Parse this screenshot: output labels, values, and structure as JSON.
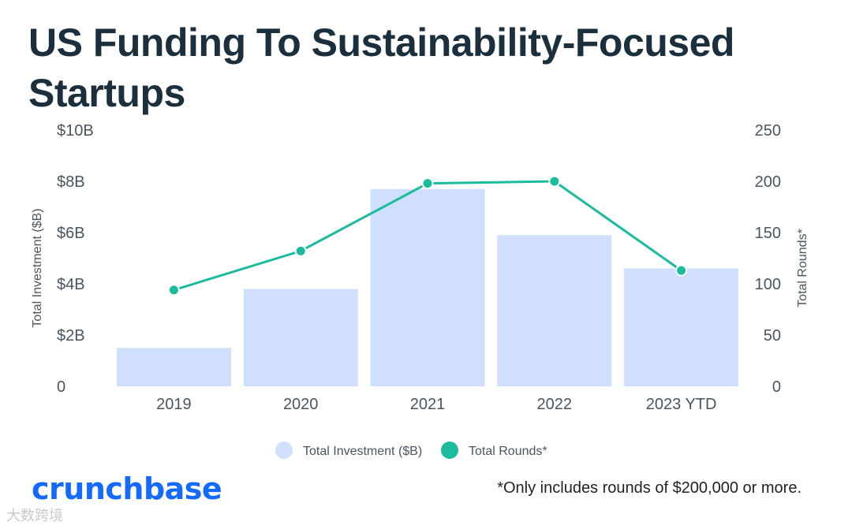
{
  "title": "US Funding To Sustainability-Focused Startups",
  "brand": "crunchbase",
  "footnote": "*Only includes rounds of $200,000 or more.",
  "watermark": "大数跨境",
  "chart_data": {
    "type": "bar",
    "categories": [
      "2019",
      "2020",
      "2021",
      "2022",
      "2023 YTD"
    ],
    "series": [
      {
        "name": "Total Investment ($B)",
        "type": "bar",
        "axis": "left",
        "values": [
          1.5,
          3.8,
          7.7,
          5.9,
          4.6
        ],
        "color": "#cfdffd"
      },
      {
        "name": "Total Rounds*",
        "type": "line",
        "axis": "right",
        "values": [
          94,
          132,
          198,
          200,
          113
        ],
        "color": "#1bbc9b"
      }
    ],
    "y_left": {
      "label": "Total Investment ($B)",
      "ylim": [
        0,
        10
      ],
      "ticks": [
        0,
        2,
        4,
        6,
        8,
        10
      ],
      "tick_labels": [
        "0",
        "$2B",
        "$4B",
        "$6B",
        "$8B",
        "$10B"
      ]
    },
    "y_right": {
      "label": "Total Rounds*",
      "ylim": [
        0,
        250
      ],
      "ticks": [
        0,
        50,
        100,
        150,
        200,
        250
      ],
      "tick_labels": [
        "0",
        "50",
        "100",
        "150",
        "200",
        "250"
      ]
    },
    "grid": false,
    "legend": "bottom-center"
  }
}
